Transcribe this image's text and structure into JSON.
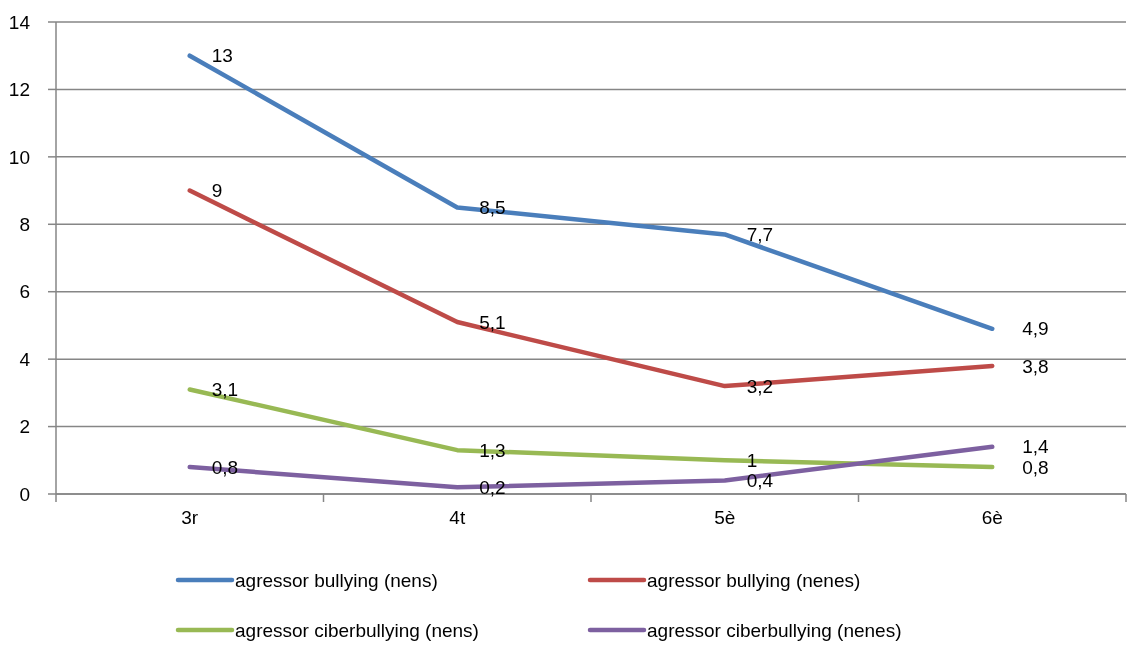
{
  "chart_data": {
    "type": "line",
    "categories": [
      "3r",
      "4t",
      "5è",
      "6è"
    ],
    "series": [
      {
        "name": "agressor bullying (nens)",
        "color": "#4a7ebb",
        "values": [
          13,
          8.5,
          7.7,
          4.9
        ],
        "value_labels": [
          "13",
          "8,5",
          "7,7",
          "4,9"
        ]
      },
      {
        "name": "agressor bullying (nenes)",
        "color": "#be4b48",
        "values": [
          9,
          5.1,
          3.2,
          3.8
        ],
        "value_labels": [
          "9",
          "5,1",
          "3,2",
          "3,8"
        ]
      },
      {
        "name": "agressor ciberbullying (nens)",
        "color": "#98b954",
        "values": [
          3.1,
          1.3,
          1,
          0.8
        ],
        "value_labels": [
          "3,1",
          "1,3",
          "1",
          "0,8"
        ]
      },
      {
        "name": "agressor ciberbullying (nenes)",
        "color": "#7d60a0",
        "values": [
          0.8,
          0.2,
          0.4,
          1.4
        ],
        "value_labels": [
          "0,8",
          "0,2",
          "0,4",
          "1,4"
        ]
      }
    ],
    "ylim": [
      0,
      14
    ],
    "yticks": [
      0,
      2,
      4,
      6,
      8,
      10,
      12,
      14
    ],
    "grid": "y",
    "legend": "bottom"
  }
}
